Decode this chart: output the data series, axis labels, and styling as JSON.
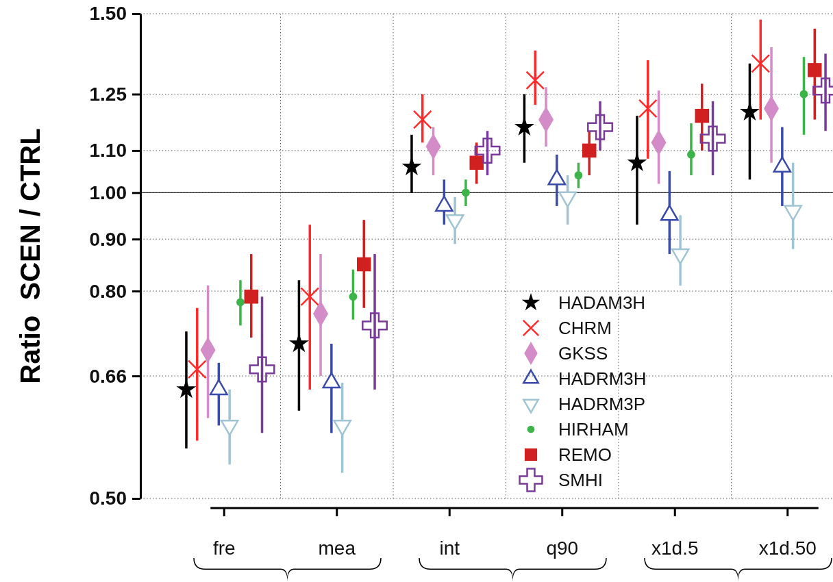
{
  "chart_data": {
    "type": "scatter",
    "ylabel": "Ratio  SCEN / CTRL",
    "log": true,
    "grid": true,
    "legend": "bottom right",
    "categories": [
      "fre",
      "mea",
      "int",
      "q90",
      "x1d.5",
      "x1d.50"
    ],
    "ylim": [
      0.5,
      1.5
    ],
    "yticks": [
      {
        "value": 0.5,
        "label": "0.50"
      },
      {
        "value": 0.66,
        "label": "0.66"
      },
      {
        "value": 0.8,
        "label": "0.80"
      },
      {
        "value": 0.9,
        "label": "0.90"
      },
      {
        "value": 1.0,
        "label": "1.00"
      },
      {
        "value": 1.1,
        "label": "1.10"
      },
      {
        "value": 1.25,
        "label": "1.25"
      },
      {
        "value": 1.5,
        "label": "1.50"
      }
    ],
    "ref_lines": [
      {
        "axis": "y",
        "value": 1.0,
        "color": "#000000",
        "line_style": "solid"
      }
    ],
    "series": [
      {
        "name": "HADAM3H",
        "color": "#000000",
        "marker": "star",
        "x": [
          "fre",
          "mea",
          "int",
          "q90",
          "x1d.5",
          "x1d.50"
        ],
        "values": [
          0.64,
          0.71,
          1.06,
          1.16,
          1.07,
          1.2
        ],
        "errors": [
          [
            0.56,
            0.73
          ],
          [
            0.61,
            0.82
          ],
          [
            1.0,
            1.14
          ],
          [
            1.07,
            1.25
          ],
          [
            0.93,
            1.19
          ],
          [
            1.03,
            1.34
          ]
        ]
      },
      {
        "name": "CHRM",
        "color": "#ff2a2a",
        "marker": "cross",
        "x": [
          "fre",
          "mea",
          "int",
          "q90",
          "x1d.5",
          "x1d.50"
        ],
        "values": [
          0.67,
          0.79,
          1.18,
          1.29,
          1.21,
          1.34
        ],
        "errors": [
          [
            0.57,
            0.77
          ],
          [
            0.64,
            0.93
          ],
          [
            1.12,
            1.25
          ],
          [
            1.22,
            1.38
          ],
          [
            1.08,
            1.35
          ],
          [
            1.18,
            1.48
          ]
        ]
      },
      {
        "name": "GKSS",
        "color": "#d48cc8",
        "marker": "diamond",
        "x": [
          "fre",
          "mea",
          "int",
          "q90",
          "x1d.5",
          "x1d.50"
        ],
        "values": [
          0.7,
          0.76,
          1.11,
          1.18,
          1.12,
          1.21
        ],
        "errors": [
          [
            0.6,
            0.81
          ],
          [
            0.66,
            0.87
          ],
          [
            1.04,
            1.16
          ],
          [
            1.11,
            1.27
          ],
          [
            1.02,
            1.26
          ],
          [
            1.07,
            1.39
          ]
        ]
      },
      {
        "name": "HADRM3H",
        "color": "#3a4aa8",
        "marker": "triangle",
        "x": [
          "fre",
          "mea",
          "int",
          "q90",
          "x1d.5",
          "x1d.50"
        ],
        "values": [
          0.64,
          0.65,
          0.97,
          1.03,
          0.95,
          1.06
        ],
        "errors": [
          [
            0.59,
            0.68
          ],
          [
            0.58,
            0.71
          ],
          [
            0.93,
            1.03
          ],
          [
            0.97,
            1.09
          ],
          [
            0.87,
            1.05
          ],
          [
            0.97,
            1.16
          ]
        ]
      },
      {
        "name": "HADRM3P",
        "color": "#a0c4d4",
        "marker": "triangle-down",
        "x": [
          "fre",
          "mea",
          "int",
          "q90",
          "x1d.5",
          "x1d.50"
        ],
        "values": [
          0.59,
          0.59,
          0.94,
          0.99,
          0.87,
          0.96
        ],
        "errors": [
          [
            0.54,
            0.64
          ],
          [
            0.53,
            0.65
          ],
          [
            0.89,
            0.99
          ],
          [
            0.93,
            1.04
          ],
          [
            0.81,
            0.95
          ],
          [
            0.88,
            1.07
          ]
        ]
      },
      {
        "name": "HIRHAM",
        "color": "#3cb44a",
        "marker": "circle",
        "x": [
          "fre",
          "mea",
          "int",
          "q90",
          "x1d.5",
          "x1d.50"
        ],
        "values": [
          0.78,
          0.79,
          1.0,
          1.04,
          1.09,
          1.25
        ],
        "errors": [
          [
            0.74,
            0.82
          ],
          [
            0.75,
            0.84
          ],
          [
            0.97,
            1.03
          ],
          [
            1.01,
            1.07
          ],
          [
            1.04,
            1.17
          ],
          [
            1.14,
            1.36
          ]
        ]
      },
      {
        "name": "REMO",
        "color": "#d02020",
        "marker": "square",
        "x": [
          "fre",
          "mea",
          "int",
          "q90",
          "x1d.5",
          "x1d.50"
        ],
        "values": [
          0.79,
          0.85,
          1.07,
          1.1,
          1.19,
          1.32
        ],
        "errors": [
          [
            0.72,
            0.87
          ],
          [
            0.77,
            0.94
          ],
          [
            1.02,
            1.12
          ],
          [
            1.04,
            1.15
          ],
          [
            1.1,
            1.28
          ],
          [
            1.18,
            1.45
          ]
        ]
      },
      {
        "name": "SMHI",
        "color": "#7a3a9a",
        "marker": "plus",
        "x": [
          "fre",
          "mea",
          "int",
          "q90",
          "x1d.5",
          "x1d.50"
        ],
        "values": [
          0.67,
          0.74,
          1.1,
          1.16,
          1.13,
          1.26
        ],
        "errors": [
          [
            0.58,
            0.79
          ],
          [
            0.64,
            0.87
          ],
          [
            1.04,
            1.15
          ],
          [
            1.1,
            1.23
          ],
          [
            1.04,
            1.23
          ],
          [
            1.15,
            1.37
          ]
        ]
      }
    ]
  }
}
